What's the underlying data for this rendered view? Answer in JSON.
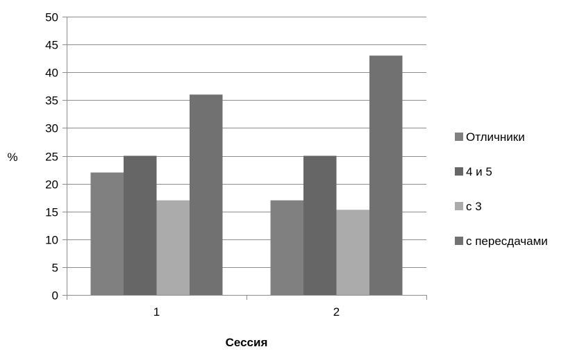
{
  "chart_data": {
    "type": "bar",
    "title": "",
    "xlabel": "Сессия",
    "ylabel": "%",
    "ylim": [
      0,
      50
    ],
    "ytick_step": 5,
    "yticks": [
      "0",
      "5",
      "10",
      "15",
      "20",
      "25",
      "30",
      "35",
      "40",
      "45",
      "50"
    ],
    "categories": [
      "1",
      "2"
    ],
    "grid": true,
    "legend_position": "right",
    "series": [
      {
        "name": "Отличники",
        "color": "#808080",
        "values": [
          22,
          17
        ]
      },
      {
        "name": "4 и 5",
        "color": "#666666",
        "values": [
          25,
          25
        ]
      },
      {
        "name": "с 3",
        "color": "#ababab",
        "values": [
          17,
          15.3
        ]
      },
      {
        "name": "с пересдачами",
        "color": "#717171",
        "values": [
          36,
          43
        ]
      }
    ]
  }
}
